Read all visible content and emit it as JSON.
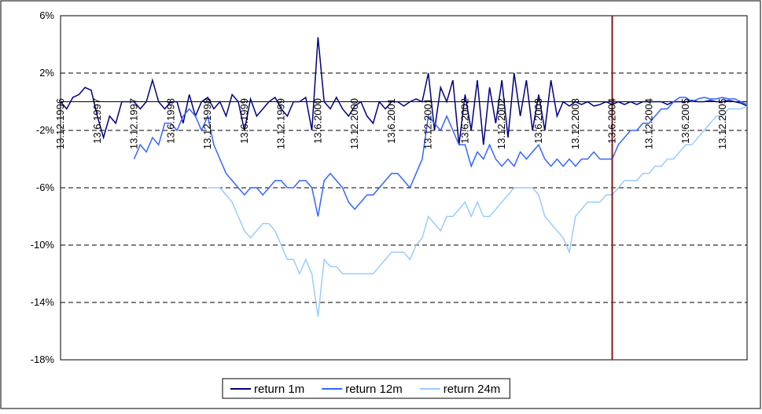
{
  "chart_data": {
    "type": "line",
    "x": [
      "13.12.1996",
      "13.1.1997",
      "13.2.1997",
      "13.3.1997",
      "13.4.1997",
      "13.5.1997",
      "13.6.1997",
      "13.7.1997",
      "13.8.1997",
      "13.9.1997",
      "13.10.1997",
      "13.11.1997",
      "13.12.1997",
      "13.1.1998",
      "13.2.1998",
      "13.3.1998",
      "13.4.1998",
      "13.5.1998",
      "13.6.1998",
      "13.7.1998",
      "13.8.1998",
      "13.9.1998",
      "13.10.1998",
      "13.11.1998",
      "13.12.1998",
      "13.1.1999",
      "13.2.1999",
      "13.3.1999",
      "13.4.1999",
      "13.5.1999",
      "13.6.1999",
      "13.7.1999",
      "13.8.1999",
      "13.9.1999",
      "13.10.1999",
      "13.11.1999",
      "13.12.1999",
      "13.1.2000",
      "13.2.2000",
      "13.3.2000",
      "13.4.2000",
      "13.5.2000",
      "13.6.2000",
      "13.7.2000",
      "13.8.2000",
      "13.9.2000",
      "13.10.2000",
      "13.11.2000",
      "13.12.2000",
      "13.1.2001",
      "13.2.2001",
      "13.3.2001",
      "13.4.2001",
      "13.5.2001",
      "13.6.2001",
      "13.7.2001",
      "13.8.2001",
      "13.9.2001",
      "13.10.2001",
      "13.11.2001",
      "13.12.2001",
      "13.1.2002",
      "13.2.2002",
      "13.3.2002",
      "13.4.2002",
      "13.5.2002",
      "13.6.2002",
      "13.7.2002",
      "13.8.2002",
      "13.9.2002",
      "13.10.2002",
      "13.11.2002",
      "13.12.2002",
      "13.1.2003",
      "13.2.2003",
      "13.3.2003",
      "13.4.2003",
      "13.5.2003",
      "13.6.2003",
      "13.7.2003",
      "13.8.2003",
      "13.9.2003",
      "13.10.2003",
      "13.11.2003",
      "13.12.2003",
      "13.1.2004",
      "13.2.2004",
      "13.3.2004",
      "13.4.2004",
      "13.5.2004",
      "13.6.2004",
      "13.7.2004",
      "13.8.2004",
      "13.9.2004",
      "13.10.2004",
      "13.11.2004",
      "13.12.2004",
      "13.1.2005",
      "13.2.2005",
      "13.3.2005",
      "13.4.2005",
      "13.5.2005",
      "13.6.2005",
      "13.7.2005",
      "13.8.2005",
      "13.9.2005",
      "13.10.2005",
      "13.11.2005",
      "13.12.2005",
      "13.1.2006",
      "13.2.2006",
      "13.3.2006",
      "13.4.2006"
    ],
    "series": [
      {
        "name": "return 1m",
        "color": "#000080",
        "values": [
          0,
          -0.5,
          0.3,
          0.5,
          1,
          0.8,
          -1,
          -2.5,
          -1,
          -1.5,
          0,
          0,
          0,
          -0.5,
          0,
          1.5,
          0,
          -0.5,
          0,
          0,
          -1.5,
          0.5,
          -1,
          0,
          0.3,
          -0.5,
          0,
          -1,
          0.5,
          0,
          -2,
          0.2,
          -1,
          -0.5,
          0,
          0.3,
          -0.5,
          -1,
          0,
          0,
          0.3,
          -2,
          4.5,
          0,
          -0.5,
          0.3,
          -0.5,
          -1,
          -0.3,
          0,
          -1,
          -1.5,
          0,
          -0.5,
          0,
          0,
          -0.3,
          0,
          0.2,
          0,
          2,
          -2,
          1,
          0,
          1.5,
          -3,
          0.5,
          -2,
          1.5,
          -3,
          1,
          -1.5,
          1.5,
          -2.5,
          2,
          -1,
          1.5,
          -2,
          0.5,
          -2,
          1.5,
          -1,
          0,
          -0.3,
          0,
          -0.2,
          0,
          -0.3,
          -0.2,
          0,
          -0.2,
          0,
          -0.2,
          0,
          -0.2,
          0,
          0,
          0,
          0,
          -0.2,
          0,
          0,
          0,
          0.1,
          0,
          0,
          0.1,
          0,
          0,
          0.1,
          0,
          -0.1,
          -0.3
        ]
      },
      {
        "name": "return 12m",
        "color": "#3366ff",
        "values": [
          null,
          null,
          null,
          null,
          null,
          null,
          null,
          null,
          null,
          null,
          null,
          null,
          -4,
          -3,
          -3.5,
          -2.5,
          -3,
          -1.5,
          -1.5,
          -2,
          -1,
          -0.5,
          -1,
          -2,
          -1,
          -3,
          -4,
          -5,
          -5.5,
          -6,
          -6.5,
          -6,
          -6,
          -6.5,
          -6,
          -5.5,
          -5.5,
          -6,
          -6,
          -5.5,
          -5.5,
          -6,
          -8,
          -5.5,
          -5,
          -5.5,
          -6,
          -7,
          -7.5,
          -7,
          -6.5,
          -6.5,
          -6,
          -5.5,
          -5,
          -5,
          -5.5,
          -6,
          -5,
          -4,
          -1,
          -1.5,
          -2,
          -1,
          -2,
          -3,
          -3,
          -4.5,
          -3.5,
          -4,
          -3,
          -4,
          -4.5,
          -4,
          -4.5,
          -3.5,
          -4,
          -3.5,
          -3,
          -4,
          -4.5,
          -4,
          -4.5,
          -4,
          -4.5,
          -4,
          -4,
          -3.5,
          -4,
          -4,
          -4,
          -3,
          -2.5,
          -2,
          -2,
          -1.5,
          -1.5,
          -1,
          -0.5,
          -0.5,
          0,
          0.3,
          0.3,
          0,
          0.2,
          0.3,
          0.2,
          0.2,
          0.3,
          0.2,
          0.2,
          0,
          -0.2
        ]
      },
      {
        "name": "return 24m",
        "color": "#99ccff",
        "values": [
          null,
          null,
          null,
          null,
          null,
          null,
          null,
          null,
          null,
          null,
          null,
          null,
          null,
          null,
          null,
          null,
          null,
          null,
          null,
          null,
          null,
          null,
          null,
          null,
          -6,
          -6,
          -6,
          -6.5,
          -7,
          -8,
          -9,
          -9.5,
          -9,
          -8.5,
          -8.5,
          -9,
          -10,
          -11,
          -11,
          -12,
          -11,
          -12,
          -15,
          -11,
          -11.5,
          -11.5,
          -12,
          -12,
          -12,
          -12,
          -12,
          -12,
          -11.5,
          -11,
          -10.5,
          -10.5,
          -10.5,
          -11,
          -10,
          -9.5,
          -8,
          -8.5,
          -9,
          -8,
          -8,
          -7.5,
          -7,
          -8,
          -7,
          -8,
          -8,
          -7.5,
          -7,
          -6.5,
          -6,
          -6,
          -6,
          -6,
          -6.5,
          -8,
          -8.5,
          -9,
          -9.5,
          -10.5,
          -8,
          -7.5,
          -7,
          -7,
          -7,
          -6.5,
          -6.5,
          -6,
          -5.5,
          -5.5,
          -5.5,
          -5,
          -5,
          -4.5,
          -4.5,
          -4,
          -4,
          -3.5,
          -3,
          -3,
          -2.5,
          -2,
          -1.5,
          -1,
          -1,
          -0.5,
          -0.5,
          -0.5,
          -0.3
        ]
      }
    ],
    "xlim": [
      "13.12.1996",
      "13.4.2006"
    ],
    "xticks": [
      "13.12.1996",
      "13.6.1997",
      "13.12.1997",
      "13.6.1998",
      "13.12.1998",
      "13.6.1999",
      "13.12.1999",
      "13.6.2000",
      "13.12.2000",
      "13.6.2001",
      "13.12.2001",
      "13.6.2002",
      "13.12.2002",
      "13.6.2003",
      "13.12.2003",
      "13.6.2004",
      "13.12.2004",
      "13.6.2005",
      "13.12.2005"
    ],
    "ylim": [
      -18,
      6
    ],
    "yticks": [
      {
        "value": -18,
        "label": "-18%"
      },
      {
        "value": -14,
        "label": "-14%"
      },
      {
        "value": -10,
        "label": "-10%"
      },
      {
        "value": -6,
        "label": "-6%"
      },
      {
        "value": -2,
        "label": "-2%"
      },
      {
        "value": 2,
        "label": "2%"
      },
      {
        "value": 6,
        "label": "6%"
      }
    ],
    "grid": true,
    "zero_line": true,
    "vline": {
      "x": "13.6.2004",
      "color": "#8b1a1a"
    },
    "legend": "bottom"
  }
}
